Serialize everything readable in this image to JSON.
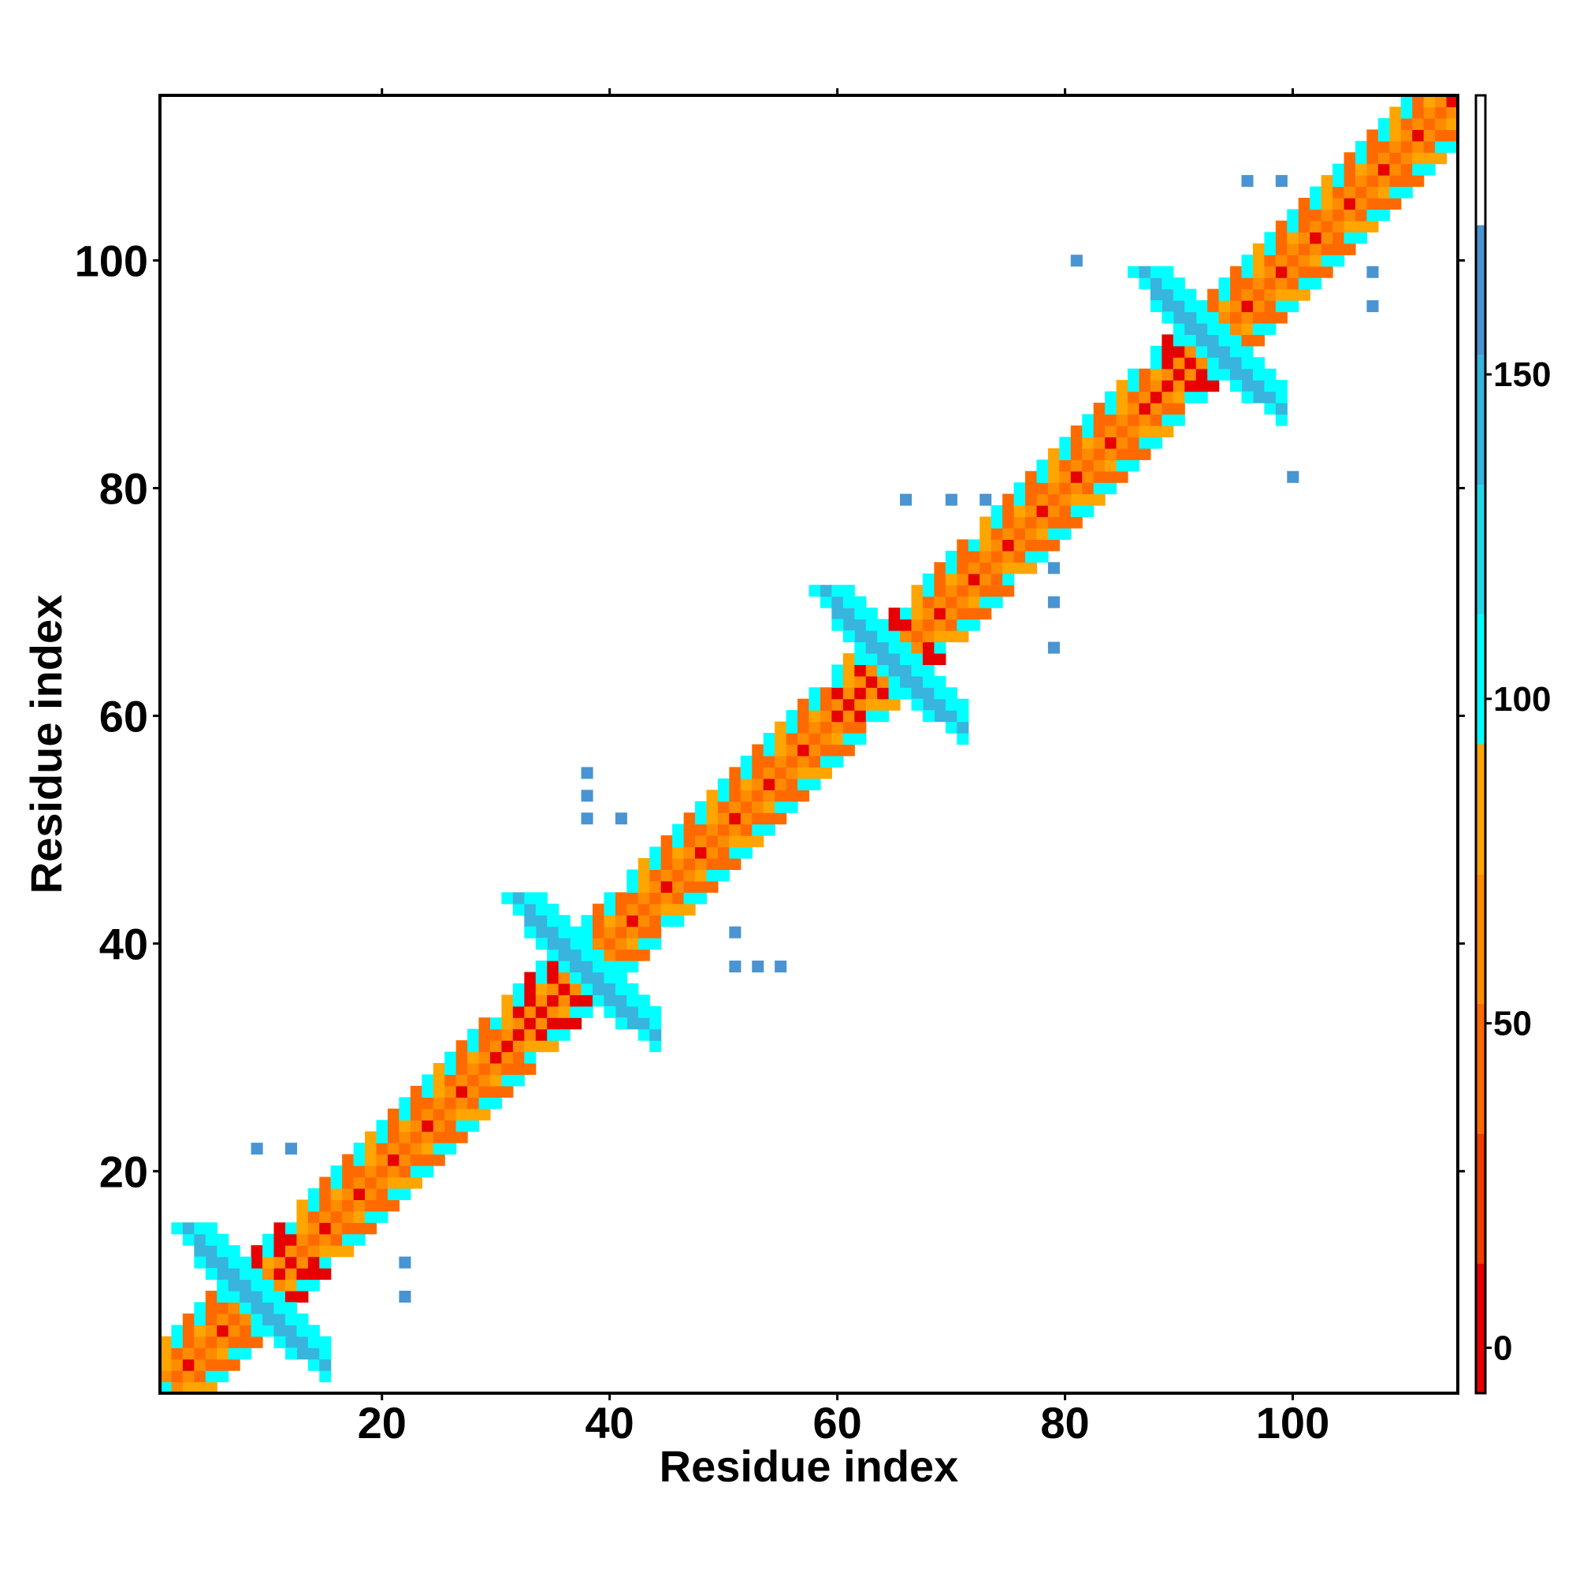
{
  "chart_data": {
    "type": "heatmap",
    "title": "",
    "xlabel": "Residue index",
    "ylabel": "Residue index",
    "xlim": [
      0.5,
      114.5
    ],
    "ylim": [
      0.5,
      114.5
    ],
    "x_ticks": [
      20,
      40,
      60,
      80,
      100
    ],
    "y_ticks": [
      20,
      40,
      60,
      80,
      100
    ],
    "x_tick_labels": [
      "20",
      "40",
      "60",
      "80",
      "100"
    ],
    "y_tick_labels": [
      "20",
      "40",
      "60",
      "80",
      "100"
    ],
    "grid": false,
    "colorbar": {
      "range": [
        -7,
        193
      ],
      "ticks": [
        0,
        50,
        100,
        150
      ],
      "tick_labels": [
        "0",
        "50",
        "100",
        "150"
      ],
      "bands": [
        {
          "from": -7,
          "to": 13,
          "color": "#e60000"
        },
        {
          "from": 13,
          "to": 33,
          "color": "#f23c00"
        },
        {
          "from": 33,
          "to": 53,
          "color": "#ff6a00"
        },
        {
          "from": 53,
          "to": 73,
          "color": "#ff8c00"
        },
        {
          "from": 73,
          "to": 93,
          "color": "#ffa500"
        },
        {
          "from": 93,
          "to": 113,
          "color": "#00ffff"
        },
        {
          "from": 113,
          "to": 133,
          "color": "#22d8e8"
        },
        {
          "from": 133,
          "to": 153,
          "color": "#38b4dd"
        },
        {
          "from": 153,
          "to": 173,
          "color": "#4a94d2"
        },
        {
          "from": 173,
          "to": 193,
          "color": "#ffffff"
        }
      ]
    },
    "description_values": {
      "helix_cell_value": 40,
      "helix_alt_value": 10,
      "helix_cyan_value": 100,
      "antiparallel_sheet_value": 150,
      "parallel_sheet_value": 160
    },
    "clusters": [
      {
        "kind": "diag",
        "from": 1,
        "to": 3,
        "value": 100
      },
      {
        "kind": "diag",
        "from": 2,
        "to": 9,
        "value": 40
      },
      {
        "kind": "diag",
        "from": 9,
        "to": 13,
        "value": 10
      },
      {
        "kind": "diag",
        "from": 13,
        "to": 31,
        "value": 40
      },
      {
        "kind": "diag",
        "from": 31,
        "to": 37,
        "value": 10
      },
      {
        "kind": "diag",
        "from": 37,
        "to": 42,
        "value": 40
      },
      {
        "kind": "diag",
        "from": 42,
        "to": 60,
        "value": 40
      },
      {
        "kind": "diag",
        "from": 60,
        "to": 67,
        "value": 10
      },
      {
        "kind": "diag",
        "from": 67,
        "to": 73,
        "value": 40
      },
      {
        "kind": "diag",
        "from": 73,
        "to": 88,
        "value": 40
      },
      {
        "kind": "diag",
        "from": 88,
        "to": 92,
        "value": 10
      },
      {
        "kind": "diag",
        "from": 92,
        "to": 114,
        "value": 40
      },
      {
        "kind": "sheet",
        "x": 9,
        "y": 9,
        "size": 6,
        "value": 150
      },
      {
        "kind": "sheet",
        "x": 38,
        "y": 38,
        "size": 6,
        "value": 150
      },
      {
        "kind": "sheet",
        "x": 65,
        "y": 65,
        "size": 6,
        "value": 150
      },
      {
        "kind": "sheet",
        "x": 93,
        "y": 93,
        "size": 6,
        "value": 150
      },
      {
        "kind": "scatter",
        "points": [
          [
            12,
            22
          ],
          [
            22,
            12
          ],
          [
            22,
            9
          ],
          [
            38,
            53
          ],
          [
            38,
            51
          ],
          [
            41,
            51
          ],
          [
            51,
            38
          ],
          [
            51,
            41
          ],
          [
            53,
            38
          ],
          [
            55,
            38
          ],
          [
            70,
            79
          ],
          [
            73,
            79
          ],
          [
            79,
            70
          ],
          [
            79,
            73
          ],
          [
            79,
            66
          ],
          [
            81,
            100
          ],
          [
            96,
            107
          ],
          [
            100,
            81
          ],
          [
            107,
            96
          ],
          [
            107,
            99
          ]
        ],
        "value": 160
      }
    ]
  }
}
